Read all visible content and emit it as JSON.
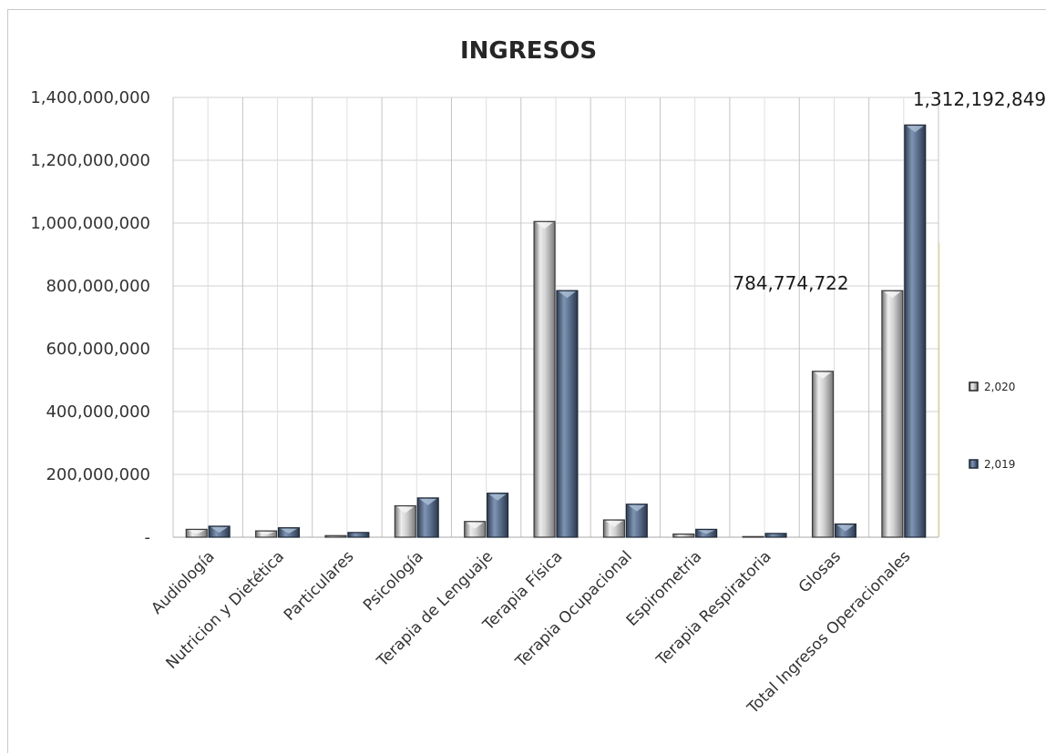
{
  "chart_data": {
    "type": "bar",
    "title": "INGRESOS",
    "categories": [
      "Audiología",
      "Nutricion y Dietética",
      "Particulares",
      "Psicología",
      "Terapia de Lenguaje",
      "Terapia Física",
      "Terapia Ocupacional",
      "Espirometria",
      "Terapia Respiratoria",
      "Glosas",
      "Total Ingresos Operacionales"
    ],
    "series": [
      {
        "name": "2,020",
        "color": "#c8c8c8",
        "values": [
          25000000,
          20000000,
          5000000,
          100000000,
          50000000,
          1005000000,
          55000000,
          10000000,
          2000000,
          528000000,
          784774722
        ]
      },
      {
        "name": "2,019",
        "color": "#5b6e8a",
        "values": [
          35000000,
          30000000,
          15000000,
          125000000,
          140000000,
          785000000,
          105000000,
          25000000,
          12000000,
          42000000,
          1312192849
        ]
      }
    ],
    "data_labels": [
      {
        "series": 0,
        "index": 10,
        "text": "784,774,722"
      },
      {
        "series": 1,
        "index": 10,
        "text": "1,312,192,849"
      }
    ],
    "yticks": [
      "-",
      "200,000,000",
      "400,000,000",
      "600,000,000",
      "800,000,000",
      "1,000,000,000",
      "1,200,000,000",
      "1,400,000,000"
    ],
    "ylim": [
      0,
      1400000000
    ],
    "grid": true,
    "legend_position": "right"
  }
}
